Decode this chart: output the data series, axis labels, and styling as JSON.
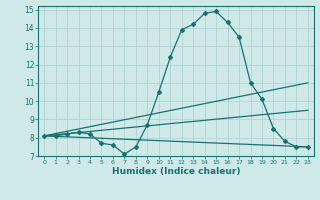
{
  "xlabel": "Humidex (Indice chaleur)",
  "xlim": [
    -0.5,
    23.5
  ],
  "ylim": [
    7,
    15.2
  ],
  "xticks": [
    0,
    1,
    2,
    3,
    4,
    5,
    6,
    7,
    8,
    9,
    10,
    11,
    12,
    13,
    14,
    15,
    16,
    17,
    18,
    19,
    20,
    21,
    22,
    23
  ],
  "yticks": [
    7,
    8,
    9,
    10,
    11,
    12,
    13,
    14,
    15
  ],
  "bg_color": "#cfe9e9",
  "line_color": "#1a7070",
  "grid_color": "#b0d4d4",
  "line1_x": [
    0,
    1,
    2,
    3,
    4,
    5,
    6,
    7,
    8,
    9,
    10,
    11,
    12,
    13,
    14,
    15,
    16,
    17,
    18,
    19,
    20,
    21,
    22,
    23
  ],
  "line1_y": [
    8.1,
    8.1,
    8.2,
    8.3,
    8.2,
    7.7,
    7.6,
    7.1,
    7.5,
    8.7,
    10.5,
    12.4,
    13.9,
    14.2,
    14.8,
    14.9,
    14.3,
    13.5,
    11.0,
    10.1,
    8.5,
    7.8,
    7.5,
    7.5
  ],
  "line2_x": [
    0,
    23
  ],
  "line2_y": [
    8.1,
    11.0
  ],
  "line3_x": [
    0,
    23
  ],
  "line3_y": [
    8.1,
    9.5
  ],
  "line4_x": [
    0,
    23
  ],
  "line4_y": [
    8.1,
    7.5
  ]
}
